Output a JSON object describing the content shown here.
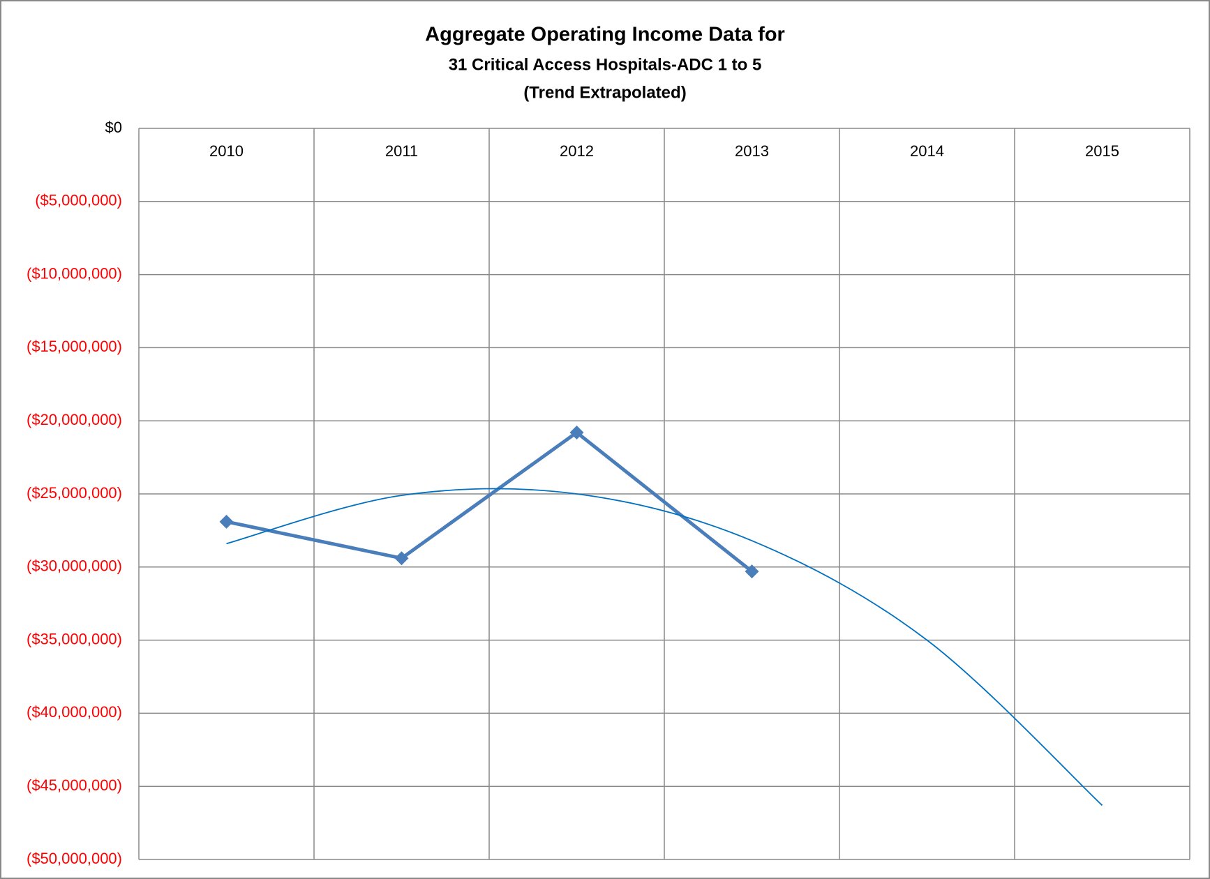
{
  "chart_data": {
    "type": "line",
    "title": "Aggregate Operating Income Data for",
    "subtitle": "31 Critical Access Hospitals-ADC 1 to 5",
    "subtitle2": "(Trend Extrapolated)",
    "categories": [
      "2010",
      "2011",
      "2012",
      "2013",
      "2014",
      "2015"
    ],
    "series": [
      {
        "color": "#4a7ebb",
        "values": [
          -26900000,
          -29400000,
          -20800000,
          -30300000,
          null,
          null
        ]
      },
      {
        "color": "#0070c0",
        "trendline": true,
        "values": [
          -28400000,
          -25100000,
          -25000000,
          -28200000,
          -35000000,
          -46300000
        ]
      }
    ],
    "ylim": [
      -50000000,
      0
    ],
    "yticks": [
      {
        "value": 0,
        "label": "$0"
      },
      {
        "value": -5000000,
        "label": "($5,000,000)"
      },
      {
        "value": -10000000,
        "label": "($10,000,000)"
      },
      {
        "value": -15000000,
        "label": "($15,000,000)"
      },
      {
        "value": -20000000,
        "label": "($20,000,000)"
      },
      {
        "value": -25000000,
        "label": "($25,000,000)"
      },
      {
        "value": -30000000,
        "label": "($30,000,000)"
      },
      {
        "value": -35000000,
        "label": "($35,000,000)"
      },
      {
        "value": -40000000,
        "label": "($40,000,000)"
      },
      {
        "value": -45000000,
        "label": "($45,000,000)"
      },
      {
        "value": -50000000,
        "label": "($50,000,000)"
      }
    ],
    "negative_tick_color": "#ff0000",
    "grid": true,
    "x_axis_position": "top"
  }
}
